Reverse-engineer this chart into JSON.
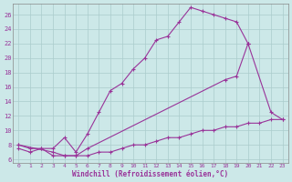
{
  "bg_color": "#cce8e8",
  "line_color": "#993399",
  "grid_color": "#aacccc",
  "xlabel": "Windchill (Refroidissement éolien,°C)",
  "ylabel_ticks": [
    6,
    8,
    10,
    12,
    14,
    16,
    18,
    20,
    22,
    24,
    26
  ],
  "xlabel_ticks": [
    0,
    1,
    2,
    3,
    4,
    5,
    6,
    7,
    8,
    9,
    10,
    11,
    12,
    13,
    14,
    15,
    16,
    17,
    18,
    19,
    20,
    21,
    22,
    23
  ],
  "xlim": [
    -0.5,
    23.5
  ],
  "ylim": [
    5.5,
    27.5
  ],
  "line1_x": [
    0,
    1,
    2,
    3,
    4,
    5,
    6,
    7,
    8,
    9,
    10,
    11,
    12,
    13,
    14,
    15,
    16,
    17,
    18,
    19,
    20
  ],
  "line1_y": [
    8,
    7.5,
    7.5,
    7.5,
    9.0,
    7.0,
    9.5,
    12.5,
    15.5,
    16.5,
    18.5,
    20.0,
    22.5,
    23.0,
    25.0,
    27.0,
    26.5,
    26.0,
    25.5,
    25.0,
    22.0
  ],
  "line2_x": [
    0,
    3,
    4,
    5,
    6,
    18,
    19,
    20,
    22,
    23
  ],
  "line2_y": [
    8,
    7.0,
    6.5,
    6.5,
    7.5,
    17.0,
    17.5,
    22.0,
    12.5,
    11.5
  ],
  "line3_x": [
    0,
    1,
    2,
    3,
    4,
    5,
    6,
    7,
    8,
    9,
    10,
    11,
    12,
    13,
    14,
    15,
    16,
    17,
    18,
    19,
    20,
    21,
    22,
    23
  ],
  "line3_y": [
    7.5,
    7.0,
    7.5,
    6.5,
    6.5,
    6.5,
    6.5,
    7.0,
    7.0,
    7.5,
    8.0,
    8.0,
    8.5,
    9.0,
    9.0,
    9.5,
    10.0,
    10.0,
    10.5,
    10.5,
    11.0,
    11.0,
    11.5,
    11.5
  ]
}
